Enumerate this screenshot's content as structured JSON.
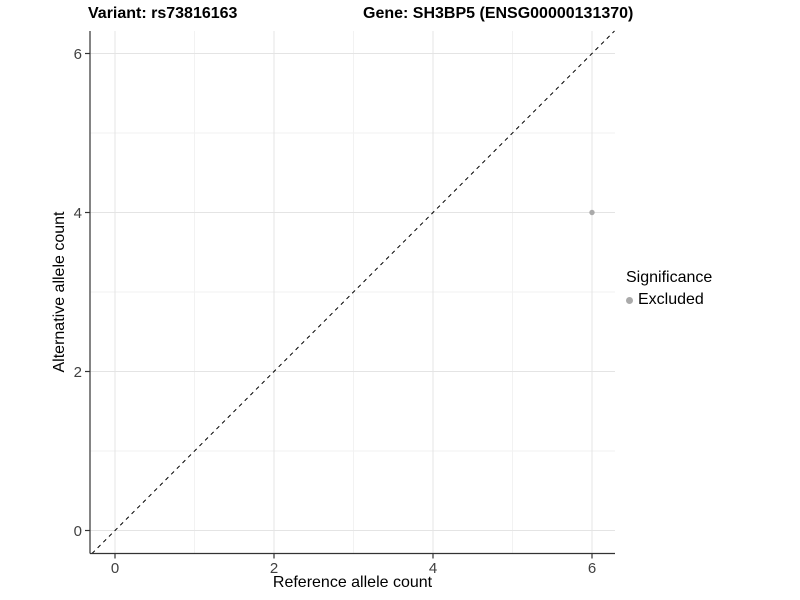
{
  "titles": {
    "variant": "Variant: rs73816163",
    "gene": "Gene: SH3BP5 (ENSG00000131370)"
  },
  "axes": {
    "x_label": "Reference allele count",
    "y_label": "Alternative allele count",
    "x_ticks": [
      "0",
      "2",
      "4",
      "6"
    ],
    "y_ticks": [
      "0",
      "2",
      "4",
      "6"
    ]
  },
  "legend": {
    "title": "Significance",
    "items": [
      {
        "label": "Excluded",
        "color": "#aaaaaa"
      }
    ]
  },
  "chart_data": {
    "type": "scatter",
    "title": "Variant: rs73816163 | Gene: SH3BP5 (ENSG00000131370)",
    "xlabel": "Reference allele count",
    "ylabel": "Alternative allele count",
    "xlim": [
      -0.32,
      6.32
    ],
    "ylim": [
      -0.32,
      6.32
    ],
    "x_ticks": [
      0,
      2,
      4,
      6
    ],
    "y_ticks": [
      0,
      2,
      4,
      6
    ],
    "grid": {
      "major": [
        0,
        2,
        4,
        6
      ],
      "minor": [
        1,
        3,
        5
      ]
    },
    "legend_position": "right",
    "series": [
      {
        "name": "Excluded",
        "color": "#aaaaaa",
        "points": [
          {
            "x": 6,
            "y": 4
          }
        ]
      }
    ],
    "reference_line": {
      "style": "dashed",
      "color": "#000000",
      "equation": "y = x"
    }
  },
  "colors": {
    "background": "#ffffff",
    "axis_line": "#333333",
    "tick_label": "#404040",
    "grid_major": "#e4e4e4",
    "grid_minor": "#f2f2f2",
    "point": "#aaaaaa"
  }
}
